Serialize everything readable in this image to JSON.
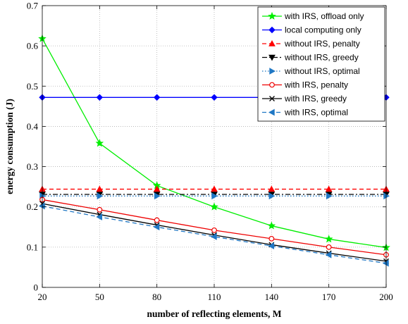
{
  "chart_data": {
    "type": "line",
    "title": "",
    "xlabel": "number of reflecting elements, M",
    "ylabel": "energy consumption (J)",
    "x": [
      20,
      50,
      80,
      110,
      140,
      170,
      200
    ],
    "xlim": [
      20,
      200
    ],
    "ylim": [
      0,
      0.7
    ],
    "xticks": [
      "20",
      "50",
      "80",
      "110",
      "140",
      "170",
      "200"
    ],
    "yticks": [
      "0",
      "0.1",
      "0.2",
      "0.3",
      "0.4",
      "0.5",
      "0.6",
      "0.7"
    ],
    "grid": true,
    "legend_position": "top-right",
    "series": [
      {
        "name": "with IRS, offload only",
        "color": "#00ee00",
        "dash": "solid",
        "marker": "star",
        "values": [
          0.618,
          0.358,
          0.253,
          0.2,
          0.153,
          0.12,
          0.099
        ]
      },
      {
        "name": "local computing only",
        "color": "#0000ff",
        "dash": "solid",
        "marker": "diamond",
        "values": [
          0.472,
          0.472,
          0.472,
          0.472,
          0.472,
          0.472,
          0.472
        ]
      },
      {
        "name": "without IRS, penalty",
        "color": "#ff0000",
        "dash": "dashed",
        "marker": "triangle-up",
        "values": [
          0.244,
          0.244,
          0.244,
          0.244,
          0.244,
          0.244,
          0.244
        ]
      },
      {
        "name": "without IRS, greedy",
        "color": "#000000",
        "dash": "dashdot",
        "marker": "triangle-down",
        "values": [
          0.231,
          0.231,
          0.231,
          0.231,
          0.231,
          0.231,
          0.231
        ]
      },
      {
        "name": "without IRS, optimal",
        "color": "#1f77c4",
        "dash": "dotted",
        "marker": "triangle-right",
        "values": [
          0.227,
          0.227,
          0.227,
          0.227,
          0.227,
          0.227,
          0.227
        ]
      },
      {
        "name": "with IRS, penalty",
        "color": "#ee0000",
        "dash": "solid",
        "marker": "circle",
        "values": [
          0.218,
          0.193,
          0.167,
          0.142,
          0.121,
          0.1,
          0.081
        ]
      },
      {
        "name": "with IRS, greedy",
        "color": "#000000",
        "dash": "solid",
        "marker": "x",
        "values": [
          0.208,
          0.181,
          0.155,
          0.13,
          0.106,
          0.085,
          0.065
        ]
      },
      {
        "name": "with IRS, optimal",
        "color": "#1f77c4",
        "dash": "dashed",
        "marker": "triangle-left",
        "values": [
          0.202,
          0.175,
          0.15,
          0.126,
          0.103,
          0.081,
          0.06
        ]
      }
    ]
  }
}
